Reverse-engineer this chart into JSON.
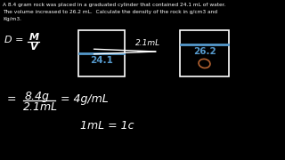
{
  "background_color": "#000000",
  "text_color": "#ffffff",
  "blue_color": "#5599cc",
  "orange_color": "#b06030",
  "title_lines": [
    "A 8.4 gram rock was placed in a graduated cylinder that contained 24.1 mL of water.",
    "The volume increased to 26.2 mL.  Calculate the density of the rock in g/cm3 and",
    "Kg/m3."
  ],
  "cylinder1_label": "24.1",
  "arrow_label": "2.1mL",
  "cylinder2_label": "26.2",
  "calc_num": "8.4g",
  "calc_den": "2.1mL",
  "calc_result": "= 4g/mL",
  "bottom_line": "1mL = 1c"
}
